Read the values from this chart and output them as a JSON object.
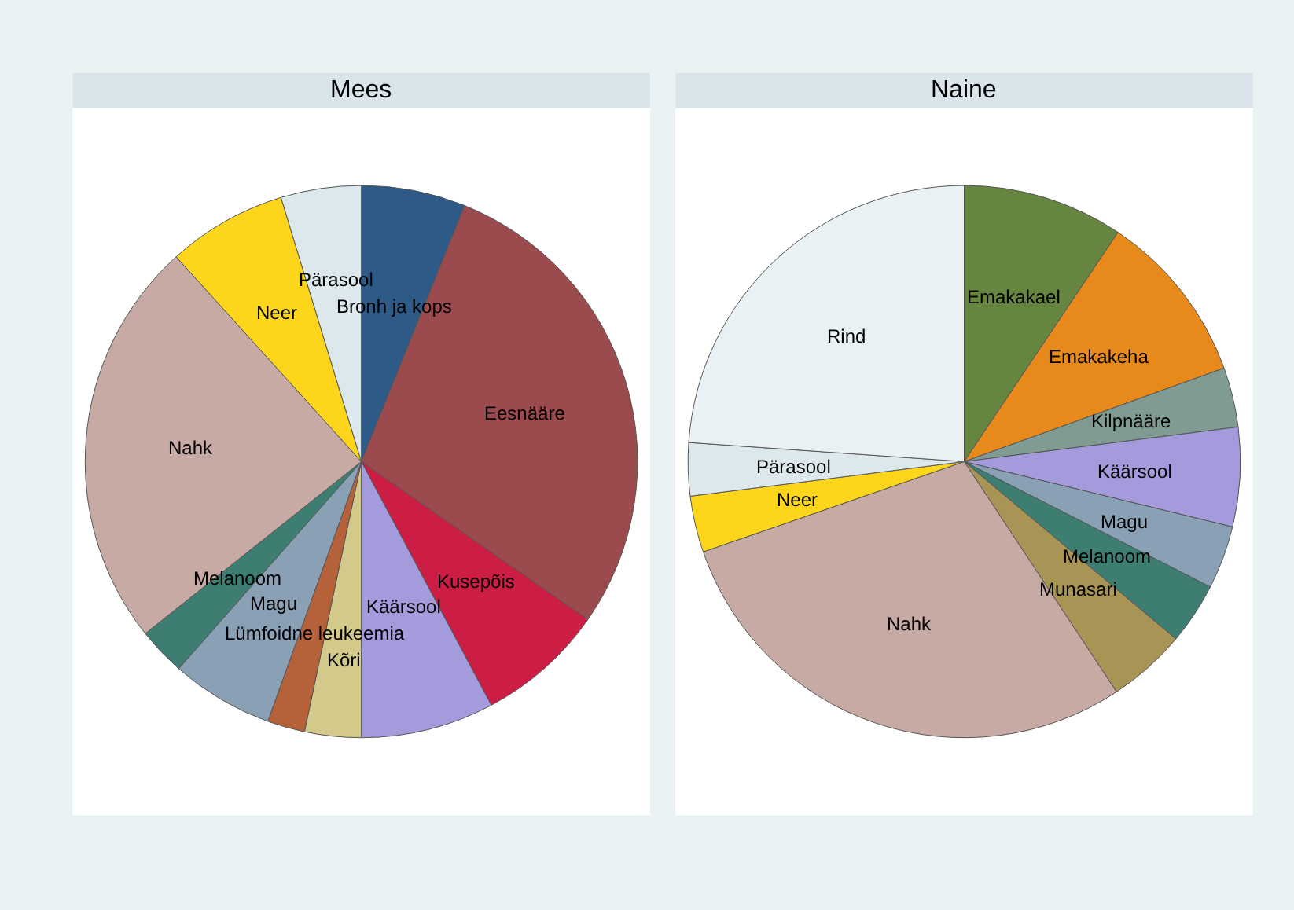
{
  "chart_data": [
    {
      "type": "pie",
      "title": "Mees",
      "categories": [
        "Bronh ja kops",
        "Eesnääre",
        "Kusepõis",
        "Käärsool",
        "Kõri",
        "Lümfoidne leukeemia",
        "Magu",
        "Melanoom",
        "Nahk",
        "Neer",
        "Pärasool"
      ],
      "values": [
        6.1,
        28.6,
        7.5,
        7.8,
        3.3,
        2.2,
        6.0,
        2.8,
        24.0,
        7.0,
        4.7
      ],
      "colors": [
        "#2d5a87",
        "#9b4a4e",
        "#cc1e44",
        "#a39bdb",
        "#d3c98a",
        "#b5623a",
        "#8aa0b5",
        "#3e7d72",
        "#c8aaa5",
        "#fdd61c",
        "#dde8ec"
      ],
      "legend": false
    },
    {
      "type": "pie",
      "title": "Naine",
      "categories": [
        "Emakakael",
        "Emakakeha",
        "Kilpnääre",
        "Käärsool",
        "Magu",
        "Melanoom",
        "Munasari",
        "Nahk",
        "Neer",
        "Pärasool",
        "Rind"
      ],
      "values": [
        9.4,
        10.1,
        3.5,
        5.8,
        3.7,
        3.6,
        4.6,
        29.0,
        3.3,
        3.1,
        23.9
      ],
      "colors": [
        "#668540",
        "#e8891c",
        "#7f9b92",
        "#a39bdb",
        "#8aa0b5",
        "#3e7d72",
        "#a89555",
        "#c8aaa5",
        "#fdd61c",
        "#dde8ec",
        "#e9f1f4"
      ],
      "legend": false
    }
  ]
}
